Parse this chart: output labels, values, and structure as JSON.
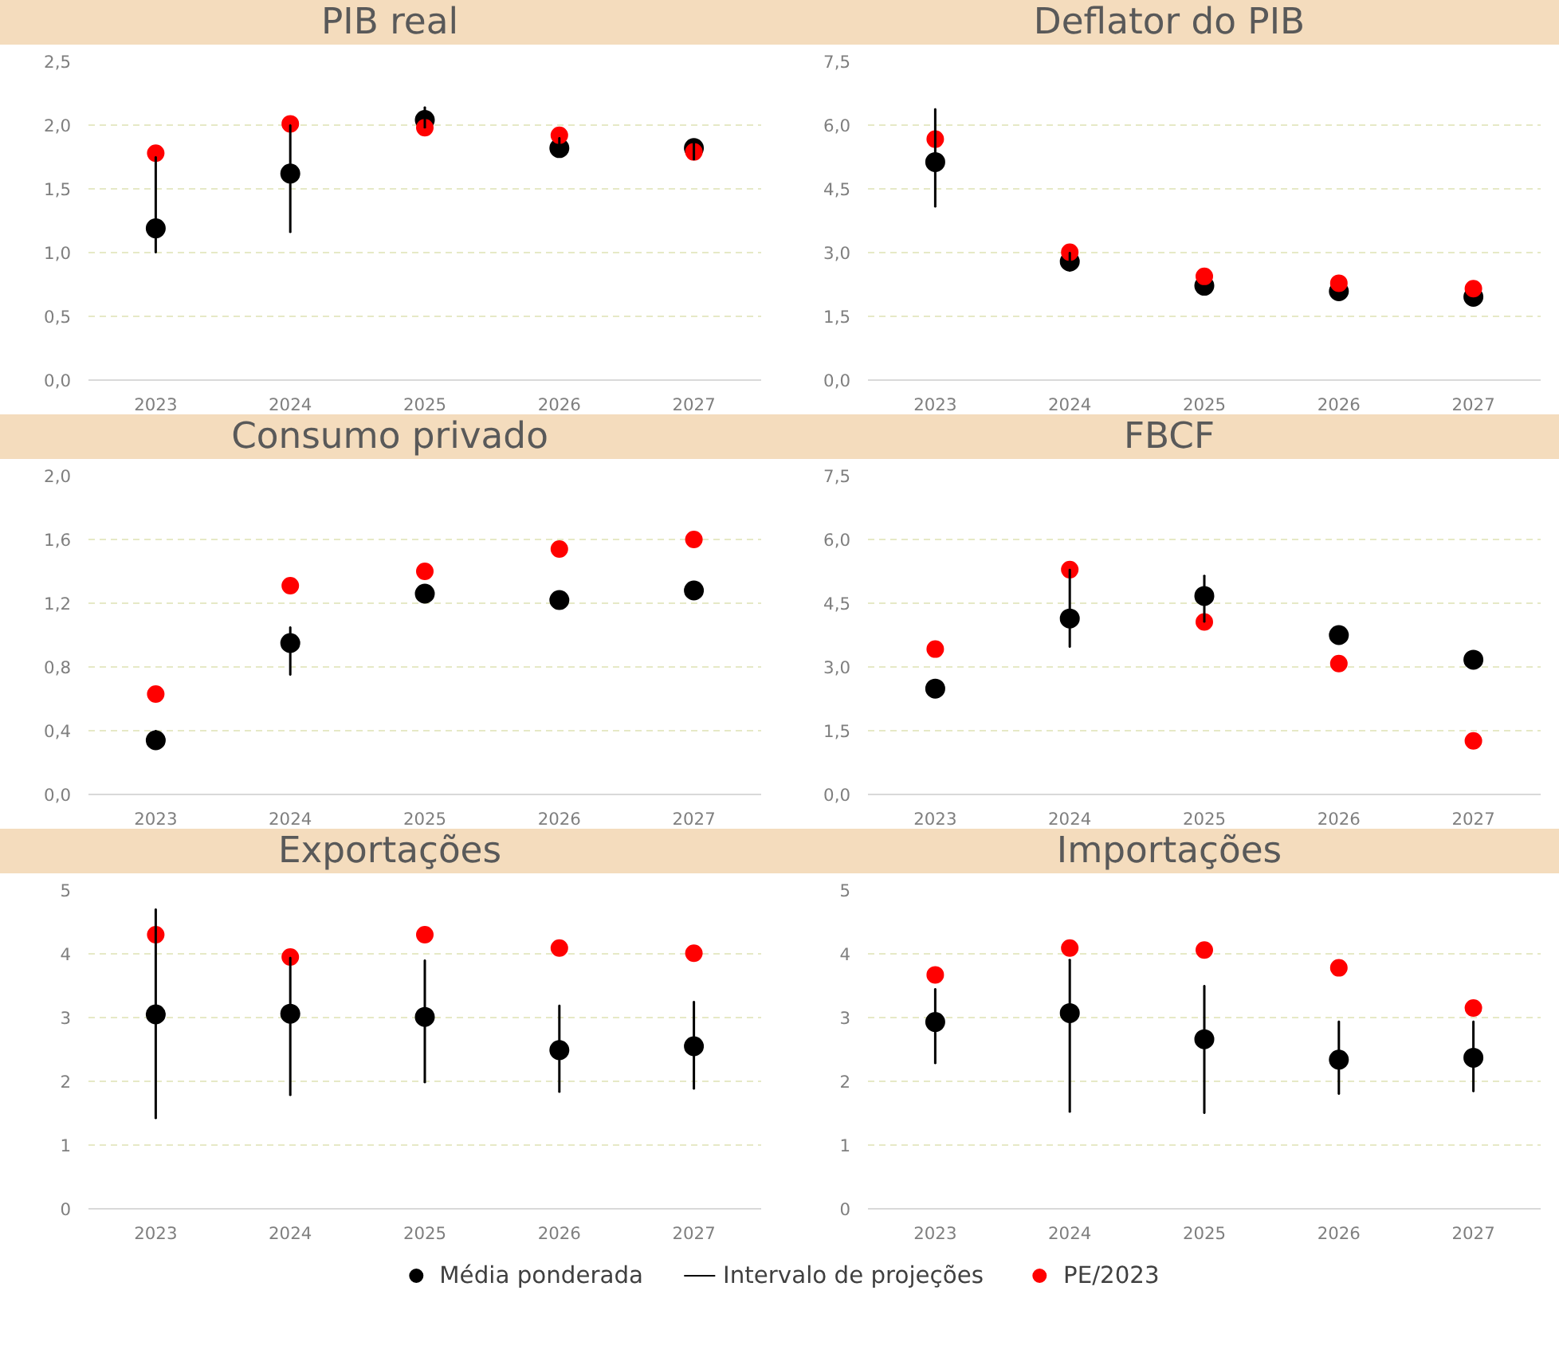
{
  "chart_data": [
    {
      "type": "scatter",
      "title": "PIB real",
      "categories": [
        "2023",
        "2024",
        "2025",
        "2026",
        "2027"
      ],
      "ylim": [
        0,
        2.5
      ],
      "yticks": [
        {
          "value": 0,
          "label": "0,0"
        },
        {
          "value": 0.5,
          "label": "0,5"
        },
        {
          "value": 1,
          "label": "1,0"
        },
        {
          "value": 1.5,
          "label": "1,5"
        },
        {
          "value": 2,
          "label": "2,0"
        },
        {
          "value": 2.5,
          "label": "2,5"
        }
      ],
      "grid": "y",
      "marker": "circle",
      "series": [
        {
          "type": "bar",
          "color": "#000000",
          "base": [
            1.0,
            1.16,
            1.98,
            1.75,
            1.73
          ],
          "values": [
            0.75,
            0.84,
            0.16,
            0.15,
            0.15
          ]
        },
        {
          "color": "#000000",
          "values": [
            1.19,
            1.62,
            2.04,
            1.82,
            1.82
          ]
        },
        {
          "color": "#ff0000",
          "values": [
            1.78,
            2.01,
            1.98,
            1.92,
            1.79
          ]
        }
      ]
    },
    {
      "type": "scatter",
      "title": "Deflator do PIB",
      "categories": [
        "2023",
        "2024",
        "2025",
        "2026",
        "2027"
      ],
      "ylim": [
        0,
        7.5
      ],
      "yticks": [
        {
          "value": 0,
          "label": "0,0"
        },
        {
          "value": 1.5,
          "label": "1,5"
        },
        {
          "value": 3,
          "label": "3,0"
        },
        {
          "value": 4.5,
          "label": "4,5"
        },
        {
          "value": 6,
          "label": "6,0"
        },
        {
          "value": 7.5,
          "label": "7,5"
        }
      ],
      "grid": "y",
      "marker": "circle",
      "series": [
        {
          "type": "bar",
          "color": "#000000",
          "base": [
            4.08,
            2.57,
            null,
            null,
            null
          ],
          "values": [
            2.3,
            0.43,
            null,
            null,
            null
          ]
        },
        {
          "color": "#000000",
          "values": [
            5.13,
            2.79,
            2.22,
            2.09,
            1.96
          ]
        },
        {
          "color": "#ff0000",
          "values": [
            5.67,
            3.01,
            2.44,
            2.28,
            2.15
          ]
        }
      ]
    },
    {
      "type": "scatter",
      "title": "Consumo privado",
      "categories": [
        "2023",
        "2024",
        "2025",
        "2026",
        "2027"
      ],
      "ylim": [
        0,
        2.0
      ],
      "yticks": [
        {
          "value": 0,
          "label": "0,0"
        },
        {
          "value": 0.4,
          "label": "0,4"
        },
        {
          "value": 0.8,
          "label": "0,8"
        },
        {
          "value": 1.2,
          "label": "1,2"
        },
        {
          "value": 1.6,
          "label": "1,6"
        },
        {
          "value": 2,
          "label": "2,0"
        }
      ],
      "grid": "y",
      "marker": "circle",
      "series": [
        {
          "type": "bar",
          "color": "#000000",
          "base": [
            0.3,
            0.75,
            null,
            null,
            null
          ],
          "values": [
            0.1,
            0.3,
            null,
            null,
            null
          ]
        },
        {
          "color": "#000000",
          "values": [
            0.34,
            0.95,
            1.26,
            1.22,
            1.28
          ]
        },
        {
          "color": "#ff0000",
          "values": [
            0.63,
            1.31,
            1.4,
            1.54,
            1.6
          ]
        }
      ]
    },
    {
      "type": "scatter",
      "title": "FBCF",
      "categories": [
        "2023",
        "2024",
        "2025",
        "2026",
        "2027"
      ],
      "ylim": [
        0,
        7.5
      ],
      "yticks": [
        {
          "value": 0,
          "label": "0,0"
        },
        {
          "value": 1.5,
          "label": "1,5"
        },
        {
          "value": 3,
          "label": "3,0"
        },
        {
          "value": 4.5,
          "label": "4,5"
        },
        {
          "value": 6,
          "label": "6,0"
        },
        {
          "value": 7.5,
          "label": "7,5"
        }
      ],
      "grid": "y",
      "marker": "circle",
      "series": [
        {
          "type": "bar",
          "color": "#000000",
          "base": [
            null,
            3.47,
            4.06,
            null,
            null
          ],
          "values": [
            null,
            1.82,
            1.09,
            null,
            null
          ]
        },
        {
          "color": "#000000",
          "values": [
            2.49,
            4.14,
            4.67,
            3.75,
            3.17
          ]
        },
        {
          "color": "#ff0000",
          "values": [
            3.42,
            5.29,
            4.06,
            3.08,
            1.26
          ]
        }
      ]
    },
    {
      "type": "scatter",
      "title": "Exportações",
      "categories": [
        "2023",
        "2024",
        "2025",
        "2026",
        "2027"
      ],
      "ylim": [
        0,
        5
      ],
      "yticks": [
        0,
        1,
        2,
        3,
        4,
        5
      ],
      "grid": "y",
      "marker": "circle",
      "series": [
        {
          "type": "bar",
          "color": "#000000",
          "base": [
            1.42,
            1.78,
            1.98,
            1.83,
            1.88
          ],
          "values": [
            3.28,
            2.16,
            1.92,
            1.36,
            1.37
          ]
        },
        {
          "color": "#000000",
          "values": [
            3.05,
            3.06,
            3.01,
            2.49,
            2.55
          ]
        },
        {
          "color": "#ff0000",
          "values": [
            4.3,
            3.95,
            4.3,
            4.09,
            4.01
          ]
        }
      ]
    },
    {
      "type": "scatter",
      "title": "Importações",
      "categories": [
        "2023",
        "2024",
        "2025",
        "2026",
        "2027"
      ],
      "ylim": [
        0,
        5
      ],
      "yticks": [
        0,
        1,
        2,
        3,
        4,
        5
      ],
      "grid": "y",
      "marker": "circle",
      "legend": "bottom",
      "series": [
        {
          "name": "Média ponderada",
          "color": "#000000",
          "values": [
            2.93,
            3.07,
            2.66,
            2.34,
            2.37
          ]
        },
        {
          "type": "bar",
          "name": "Intervalo de projeções",
          "color": "#000000",
          "base": [
            2.28,
            1.52,
            1.5,
            1.8,
            1.84
          ],
          "values": [
            1.17,
            2.39,
            2.0,
            1.14,
            1.1
          ]
        },
        {
          "name": "PE/2023",
          "color": "#ff0000",
          "values": [
            3.67,
            4.09,
            4.06,
            3.78,
            3.15
          ]
        }
      ]
    }
  ]
}
